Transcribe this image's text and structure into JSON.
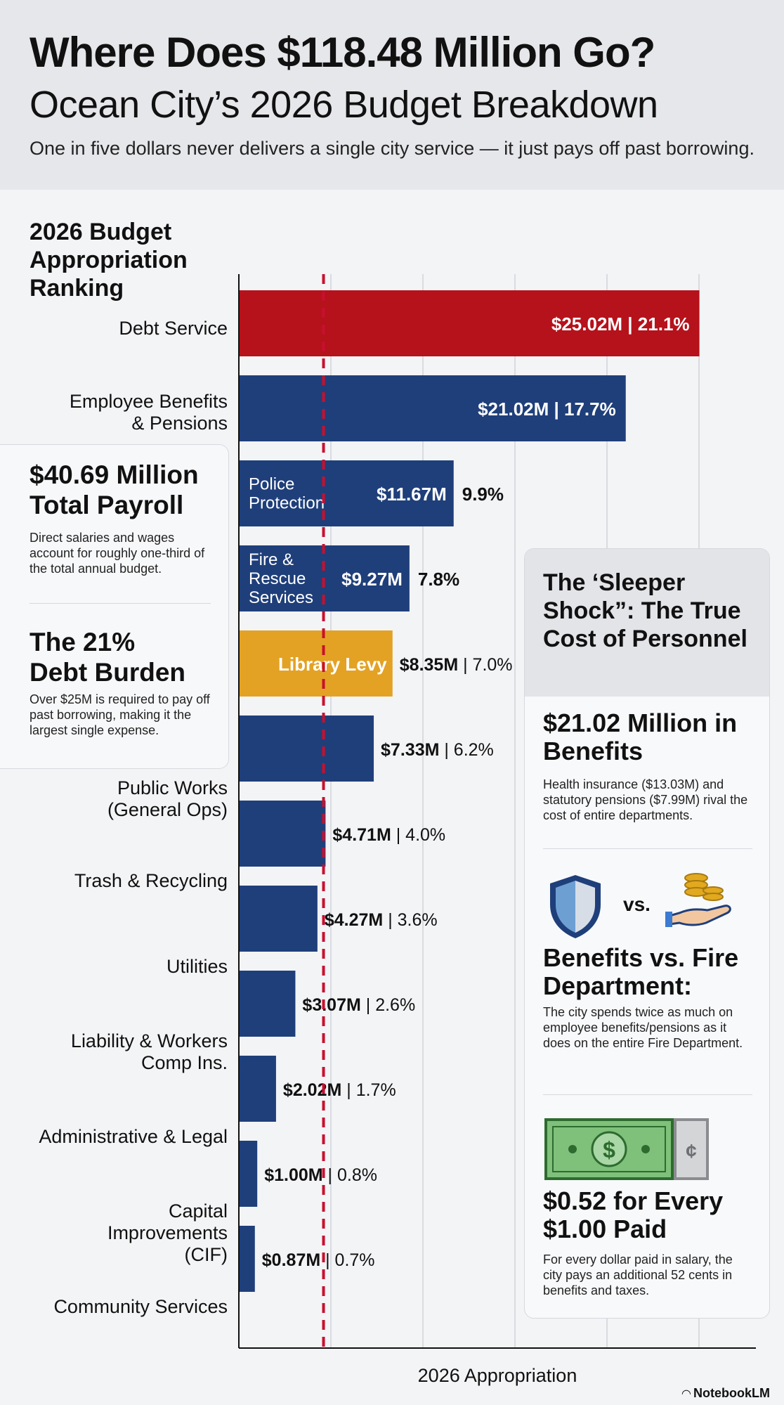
{
  "header": {
    "title": "Where Does $118.48 Million Go?",
    "subtitle": "Ocean City’s 2026 Budget Breakdown",
    "tagline": "One in five dollars never delivers a single city service — it just pays off past borrowing."
  },
  "chart_data": {
    "type": "bar",
    "orientation": "horizontal",
    "title": "2026 Budget Appropriation Ranking",
    "xlabel": "2026 Appropriation",
    "ylabel": "",
    "xlim": [
      0,
      26
    ],
    "unit": "$M",
    "grid": true,
    "reference_line": 4.6,
    "categories": [
      "Debt Service",
      "Employee Benefits & Pensions",
      "Police Protection",
      "Fire & Rescue Services",
      "Library Levy",
      "Public Works (General Ops)",
      "Trash & Recycling",
      "Utilities",
      "Liability & Workers Comp Ins.",
      "Administrative & Legal",
      "Capital Improvements (CIF)",
      "Community Services"
    ],
    "values": [
      25.02,
      21.02,
      11.67,
      9.27,
      8.35,
      7.33,
      4.71,
      4.27,
      3.07,
      2.02,
      1.0,
      0.87
    ],
    "value_labels": [
      "$25.02M",
      "$21.02M",
      "$11.67M",
      "$9.27M",
      "$8.35M",
      "$7.33M",
      "$4.71M",
      "$4.27M",
      "$3.07M",
      "$2.02M",
      "$1.00M",
      "$0.87M"
    ],
    "percents": [
      "21.1%",
      "17.7%",
      "9.9%",
      "7.8%",
      "7.0%",
      "6.2%",
      "4.0%",
      "3.6%",
      "2.6%",
      "1.7%",
      "0.8%",
      "0.7%"
    ],
    "in_bar_labels": [
      "",
      "",
      "Police Protection",
      "Fire & Rescue Services",
      "Library Levy",
      "",
      "",
      "",
      "",
      "",
      "",
      ""
    ],
    "colors": [
      "#b5121b",
      "#1f3f7a",
      "#1f3f7a",
      "#1f3f7a",
      "#e3a224",
      "#1f3f7a",
      "#1f3f7a",
      "#1f3f7a",
      "#1f3f7a",
      "#1f3f7a",
      "#1f3f7a",
      "#1f3f7a"
    ],
    "reference_color": "#c8102e",
    "grid_color": "#d9dbe0",
    "axis_color": "#111111"
  },
  "left_panel": {
    "payroll_title": "$40.69 Million Total Payroll",
    "payroll_line1": "$40.69 Million",
    "payroll_line2": "Total Payroll",
    "payroll_text": "Direct salaries and wages account for roughly one-third of the total annual budget.",
    "debt_line1": "The 21%",
    "debt_line2": "Debt Burden",
    "debt_text": "Over $25M is required to pay off past borrowing, making it the largest single expense."
  },
  "right_card": {
    "title": "The ‘Sleeper Shock”: The True Cost of Personnel",
    "benefits_title": "$21.02 Million in Benefits",
    "benefits_text": "Health insurance ($13.03M) and statutory pensions ($7.99M) rival the cost of entire departments.",
    "vs_label": "vs.",
    "compare_title": "Benefits vs. Fire Department:",
    "compare_text": "The city spends twice as much on employee benefits/pensions as it does on the entire Fire Department.",
    "ratio_title": "$0.52 for Every $1.00 Paid",
    "ratio_text": "For every dollar paid in salary, the city pays an additional 52 cents in benefits and taxes.",
    "dollar_symbol": "$",
    "cent_symbol": "¢",
    "icons": [
      "shield-icon",
      "coins-hand-icon",
      "dollar-bill-icon",
      "cent-bill-icon"
    ]
  },
  "footer": {
    "brand": "NotebookLM"
  }
}
